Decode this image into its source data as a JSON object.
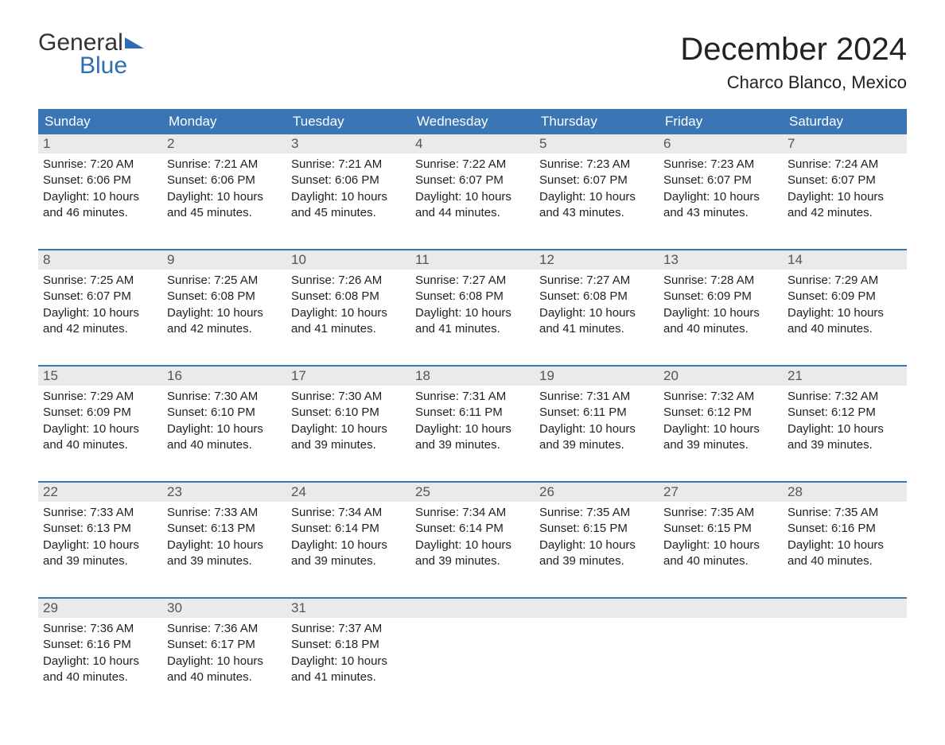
{
  "logo": {
    "word1": "General",
    "word2": "Blue"
  },
  "title": "December 2024",
  "location": "Charco Blanco, Mexico",
  "colors": {
    "header_bg": "#3a75b6",
    "header_text": "#ffffff",
    "daynum_bg": "#eaeaea",
    "border": "#3a75b6",
    "body_text": "#222222",
    "logo_blue": "#2d6eb3"
  },
  "dayheads": [
    "Sunday",
    "Monday",
    "Tuesday",
    "Wednesday",
    "Thursday",
    "Friday",
    "Saturday"
  ],
  "weeks": [
    [
      {
        "n": "1",
        "sr": "7:20 AM",
        "ss": "6:06 PM",
        "dl": "10 hours and 46 minutes."
      },
      {
        "n": "2",
        "sr": "7:21 AM",
        "ss": "6:06 PM",
        "dl": "10 hours and 45 minutes."
      },
      {
        "n": "3",
        "sr": "7:21 AM",
        "ss": "6:06 PM",
        "dl": "10 hours and 45 minutes."
      },
      {
        "n": "4",
        "sr": "7:22 AM",
        "ss": "6:07 PM",
        "dl": "10 hours and 44 minutes."
      },
      {
        "n": "5",
        "sr": "7:23 AM",
        "ss": "6:07 PM",
        "dl": "10 hours and 43 minutes."
      },
      {
        "n": "6",
        "sr": "7:23 AM",
        "ss": "6:07 PM",
        "dl": "10 hours and 43 minutes."
      },
      {
        "n": "7",
        "sr": "7:24 AM",
        "ss": "6:07 PM",
        "dl": "10 hours and 42 minutes."
      }
    ],
    [
      {
        "n": "8",
        "sr": "7:25 AM",
        "ss": "6:07 PM",
        "dl": "10 hours and 42 minutes."
      },
      {
        "n": "9",
        "sr": "7:25 AM",
        "ss": "6:08 PM",
        "dl": "10 hours and 42 minutes."
      },
      {
        "n": "10",
        "sr": "7:26 AM",
        "ss": "6:08 PM",
        "dl": "10 hours and 41 minutes."
      },
      {
        "n": "11",
        "sr": "7:27 AM",
        "ss": "6:08 PM",
        "dl": "10 hours and 41 minutes."
      },
      {
        "n": "12",
        "sr": "7:27 AM",
        "ss": "6:08 PM",
        "dl": "10 hours and 41 minutes."
      },
      {
        "n": "13",
        "sr": "7:28 AM",
        "ss": "6:09 PM",
        "dl": "10 hours and 40 minutes."
      },
      {
        "n": "14",
        "sr": "7:29 AM",
        "ss": "6:09 PM",
        "dl": "10 hours and 40 minutes."
      }
    ],
    [
      {
        "n": "15",
        "sr": "7:29 AM",
        "ss": "6:09 PM",
        "dl": "10 hours and 40 minutes."
      },
      {
        "n": "16",
        "sr": "7:30 AM",
        "ss": "6:10 PM",
        "dl": "10 hours and 40 minutes."
      },
      {
        "n": "17",
        "sr": "7:30 AM",
        "ss": "6:10 PM",
        "dl": "10 hours and 39 minutes."
      },
      {
        "n": "18",
        "sr": "7:31 AM",
        "ss": "6:11 PM",
        "dl": "10 hours and 39 minutes."
      },
      {
        "n": "19",
        "sr": "7:31 AM",
        "ss": "6:11 PM",
        "dl": "10 hours and 39 minutes."
      },
      {
        "n": "20",
        "sr": "7:32 AM",
        "ss": "6:12 PM",
        "dl": "10 hours and 39 minutes."
      },
      {
        "n": "21",
        "sr": "7:32 AM",
        "ss": "6:12 PM",
        "dl": "10 hours and 39 minutes."
      }
    ],
    [
      {
        "n": "22",
        "sr": "7:33 AM",
        "ss": "6:13 PM",
        "dl": "10 hours and 39 minutes."
      },
      {
        "n": "23",
        "sr": "7:33 AM",
        "ss": "6:13 PM",
        "dl": "10 hours and 39 minutes."
      },
      {
        "n": "24",
        "sr": "7:34 AM",
        "ss": "6:14 PM",
        "dl": "10 hours and 39 minutes."
      },
      {
        "n": "25",
        "sr": "7:34 AM",
        "ss": "6:14 PM",
        "dl": "10 hours and 39 minutes."
      },
      {
        "n": "26",
        "sr": "7:35 AM",
        "ss": "6:15 PM",
        "dl": "10 hours and 39 minutes."
      },
      {
        "n": "27",
        "sr": "7:35 AM",
        "ss": "6:15 PM",
        "dl": "10 hours and 40 minutes."
      },
      {
        "n": "28",
        "sr": "7:35 AM",
        "ss": "6:16 PM",
        "dl": "10 hours and 40 minutes."
      }
    ],
    [
      {
        "n": "29",
        "sr": "7:36 AM",
        "ss": "6:16 PM",
        "dl": "10 hours and 40 minutes."
      },
      {
        "n": "30",
        "sr": "7:36 AM",
        "ss": "6:17 PM",
        "dl": "10 hours and 40 minutes."
      },
      {
        "n": "31",
        "sr": "7:37 AM",
        "ss": "6:18 PM",
        "dl": "10 hours and 41 minutes."
      },
      null,
      null,
      null,
      null
    ]
  ],
  "labels": {
    "sunrise": "Sunrise:",
    "sunset": "Sunset:",
    "daylight": "Daylight:"
  }
}
